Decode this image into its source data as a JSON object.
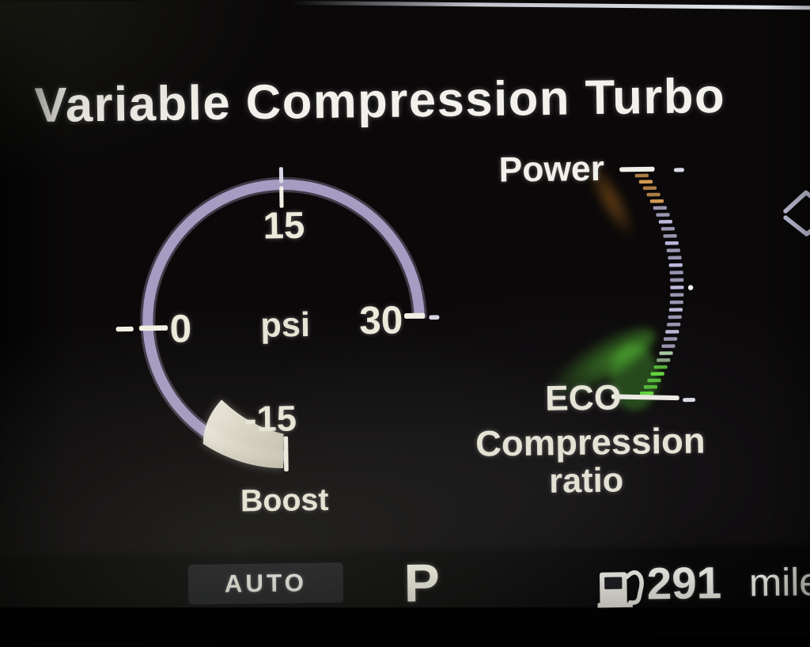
{
  "title": "Variable Compression Turbo",
  "colors": {
    "ring": "#a59cc2",
    "needle": "#efead9",
    "tick_white": "#f2f0e4",
    "label_cream": "#eceadb",
    "segment_power_amber": "#d49a55",
    "segment_mid_lavender": "#bdb8da",
    "segment_transition": "#a8caa0",
    "segment_eco_green": "#62d83e",
    "background": "#151214"
  },
  "boost_gauge": {
    "label": "Boost",
    "unit": "psi",
    "tick_top": "15",
    "tick_left": "0",
    "tick_right": "30",
    "tick_bottom": "-15"
  },
  "compression_indicator": {
    "top_label": "Power",
    "bottom_label": "ECO",
    "caption_line1": "Compression",
    "caption_line2": "ratio",
    "segments": {
      "count": 32,
      "zones": [
        {
          "until": 4,
          "color": "#d49a55"
        },
        {
          "until": 24,
          "color": "#bdb8da"
        },
        {
          "until": 26,
          "color": "#a8caa0"
        },
        {
          "until": 31,
          "color": "#62d83e"
        }
      ]
    }
  },
  "status_bar": {
    "drive_mode": "AUTO",
    "gear": "P",
    "range_value": "291",
    "range_unit": "miles"
  },
  "chart_data": [
    {
      "type": "gauge",
      "title": "Boost",
      "unit": "psi",
      "min": -15,
      "max": 30,
      "ticks": [
        -15,
        0,
        15,
        30
      ],
      "value": -9,
      "note": "cream wedge fills from -15 up to about -9 psi (vacuum); ring open across bottom-right quadrant"
    },
    {
      "type": "gauge",
      "title": "Compression ratio",
      "scale_ends": [
        "ECO",
        "Power"
      ],
      "value": "ECO",
      "segments": 32,
      "note": "vertical arc of dashes; amber near Power end, lavender middle, bright green glow at ECO end"
    }
  ]
}
